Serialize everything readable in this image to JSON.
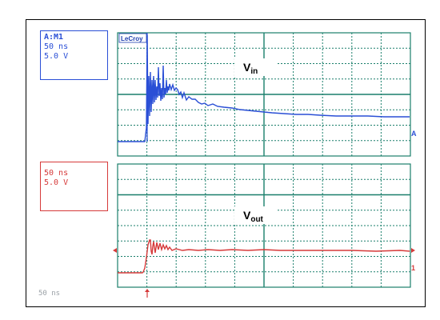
{
  "scope": {
    "brand": "LeCroy",
    "channel1": {
      "header": "A:M1",
      "timebase": "50 ns",
      "volts": "5.0 V",
      "label_main": "V",
      "label_sub": "in",
      "marker": "A",
      "color": "#2a4fd6"
    },
    "channel2": {
      "timebase": "50 ns",
      "volts": "5.0 V",
      "label_main": "V",
      "label_sub": "out",
      "marker": "1",
      "color": "#d63a3a"
    },
    "footer": "50 ns",
    "grid_color": "#1a7f6b"
  }
}
